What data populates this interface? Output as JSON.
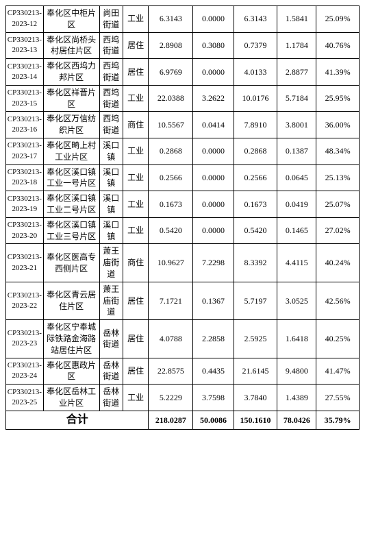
{
  "table": {
    "columns": [
      {
        "class": "c0",
        "align": "center"
      },
      {
        "class": "c1",
        "align": "center"
      },
      {
        "class": "c2",
        "align": "center"
      },
      {
        "class": "c3",
        "align": "center"
      },
      {
        "class": "c4",
        "align": "center"
      },
      {
        "class": "c5",
        "align": "center"
      },
      {
        "class": "c6",
        "align": "center"
      },
      {
        "class": "c7",
        "align": "center"
      },
      {
        "class": "c8",
        "align": "center"
      }
    ],
    "rows": [
      [
        "CP330213-2023-12",
        "奉化区中柜片区",
        "尚田街道",
        "工业",
        "6.3143",
        "0.0000",
        "6.3143",
        "1.5841",
        "25.09%"
      ],
      [
        "CP330213-2023-13",
        "奉化区尚桥头村居住片区",
        "西坞街道",
        "居住",
        "2.8908",
        "0.3080",
        "0.7379",
        "1.1784",
        "40.76%"
      ],
      [
        "CP330213-2023-14",
        "奉化区西坞力邦片区",
        "西坞街道",
        "居住",
        "6.9769",
        "0.0000",
        "4.0133",
        "2.8877",
        "41.39%"
      ],
      [
        "CP330213-2023-15",
        "奉化区祥晋片区",
        "西坞街道",
        "工业",
        "22.0388",
        "3.2622",
        "10.0176",
        "5.7184",
        "25.95%"
      ],
      [
        "CP330213-2023-16",
        "奉化区万信纺织片区",
        "西坞街道",
        "商住",
        "10.5567",
        "0.0414",
        "7.8910",
        "3.8001",
        "36.00%"
      ],
      [
        "CP330213-2023-17",
        "奉化区畸上村工业片区",
        "溪口镇",
        "工业",
        "0.2868",
        "0.0000",
        "0.2868",
        "0.1387",
        "48.34%"
      ],
      [
        "CP330213-2023-18",
        "奉化区溪口镇工业一号片区",
        "溪口镇",
        "工业",
        "0.2566",
        "0.0000",
        "0.2566",
        "0.0645",
        "25.13%"
      ],
      [
        "CP330213-2023-19",
        "奉化区溪口镇工业二号片区",
        "溪口镇",
        "工业",
        "0.1673",
        "0.0000",
        "0.1673",
        "0.0419",
        "25.07%"
      ],
      [
        "CP330213-2023-20",
        "奉化区溪口镇工业三号片区",
        "溪口镇",
        "工业",
        "0.5420",
        "0.0000",
        "0.5420",
        "0.1465",
        "27.02%"
      ],
      [
        "CP330213-2023-21",
        "奉化区医高专西侧片区",
        "萧王庙街道",
        "商住",
        "10.9627",
        "7.2298",
        "8.3392",
        "4.4115",
        "40.24%"
      ],
      [
        "CP330213-2023-22",
        "奉化区青云居住片区",
        "萧王庙街道",
        "居住",
        "7.1721",
        "0.1367",
        "5.7197",
        "3.0525",
        "42.56%"
      ],
      [
        "CP330213-2023-23",
        "奉化区宁奉城际铁路金海路站居住片区",
        "岳林街道",
        "居住",
        "4.0788",
        "2.2858",
        "2.5925",
        "1.6418",
        "40.25%"
      ],
      [
        "CP330213-2023-24",
        "奉化区惠政片区",
        "岳林街道",
        "居住",
        "22.8575",
        "0.4435",
        "21.6145",
        "9.4800",
        "41.47%"
      ],
      [
        "CP330213-2023-25",
        "奉化区岳林工业片区",
        "岳林街道",
        "工业",
        "5.2229",
        "3.7598",
        "3.7840",
        "1.4389",
        "27.55%"
      ]
    ],
    "total": {
      "label": "合计",
      "cells": [
        "218.0287",
        "50.0086",
        "150.1610",
        "78.0426",
        "35.79%"
      ]
    }
  }
}
